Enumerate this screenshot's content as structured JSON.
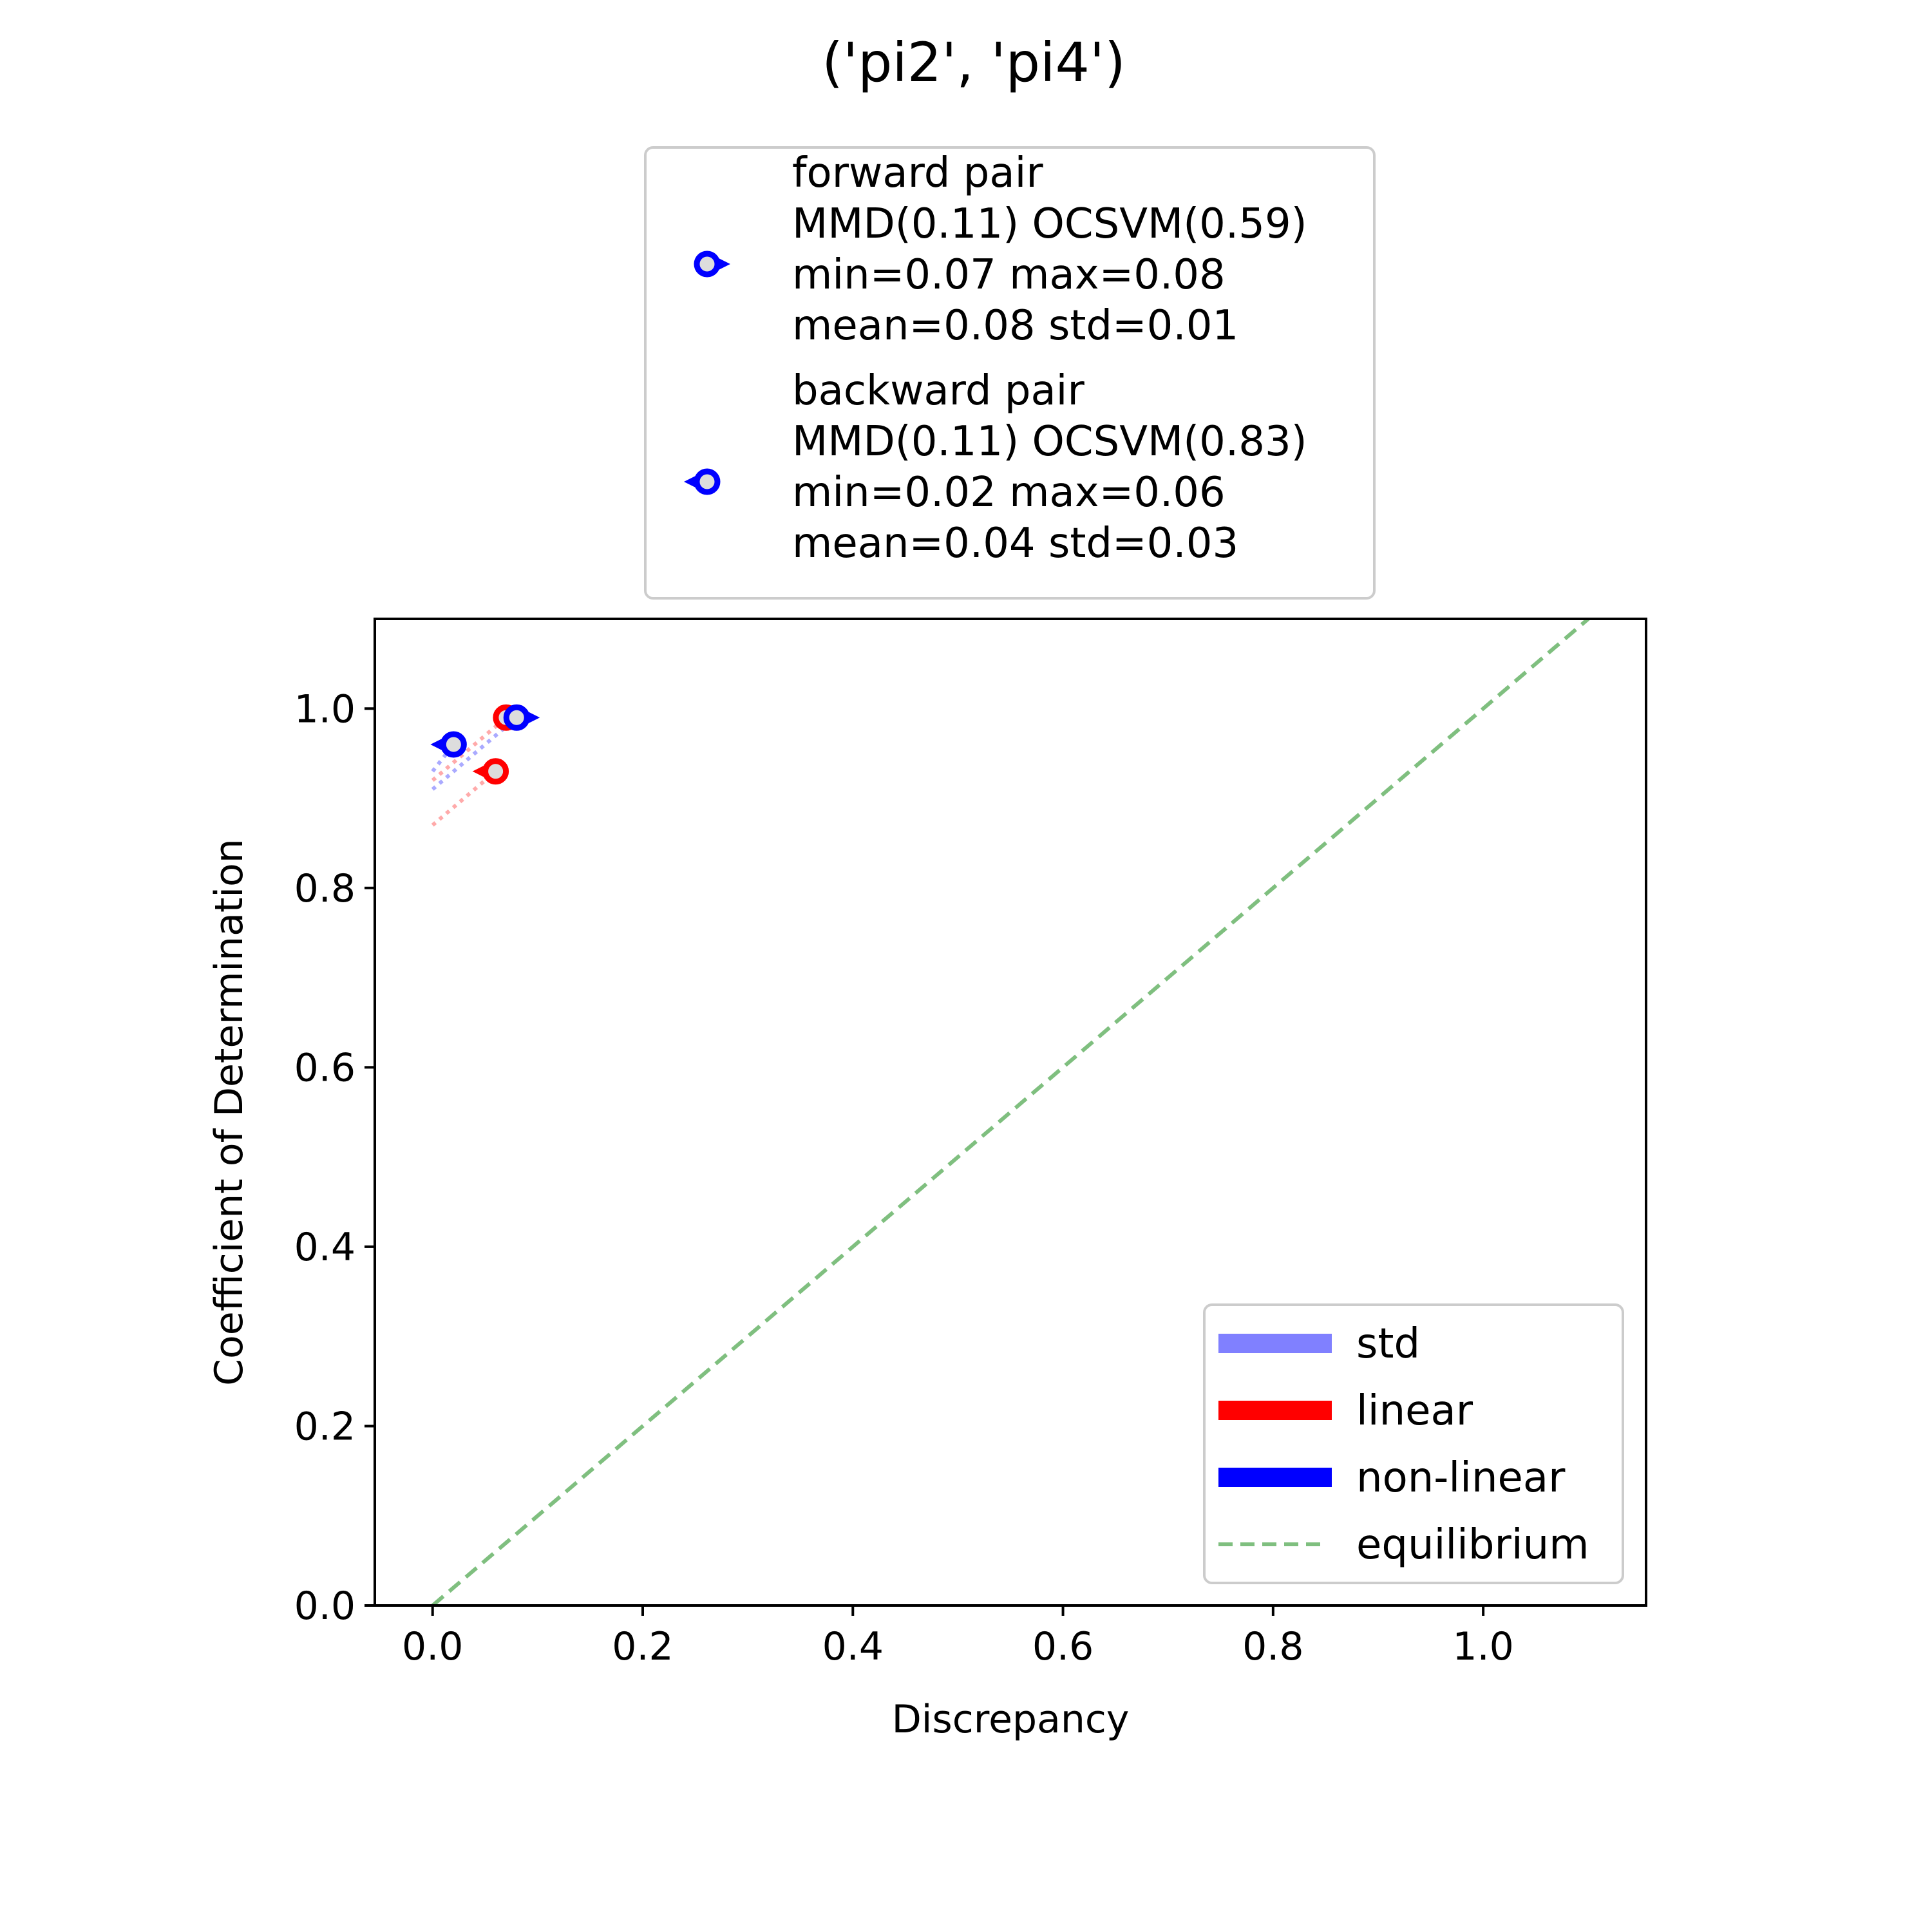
{
  "figure": {
    "title": "('pi2', 'pi4')"
  },
  "chart_data": {
    "type": "scatter",
    "title": "('pi2', 'pi4')",
    "xlabel": "Discrepancy",
    "ylabel": "Coefficient of Determination",
    "xlim": [
      -0.055,
      1.155
    ],
    "ylim": [
      0.0,
      1.1
    ],
    "xticks": [
      0.0,
      0.2,
      0.4,
      0.6,
      0.8,
      1.0
    ],
    "yticks": [
      0.0,
      0.2,
      0.4,
      0.6,
      0.8,
      1.0
    ],
    "xtick_labels": [
      "0.0",
      "0.2",
      "0.4",
      "0.6",
      "0.8",
      "1.0"
    ],
    "ytick_labels": [
      "0.0",
      "0.2",
      "0.4",
      "0.6",
      "0.8",
      "1.0"
    ],
    "grid": false,
    "equilibrium_line": {
      "x": [
        0.0,
        1.1
      ],
      "y": [
        0.0,
        1.1
      ],
      "color": "#7fbf7f",
      "style": "dashed"
    },
    "series": [
      {
        "pair": "forward",
        "marker": "circle-with-right-triangle",
        "points": [
          {
            "model": "linear",
            "x": 0.07,
            "y": 0.99,
            "color": "#ff0000",
            "std_from": [
              0.0,
              0.92
            ]
          },
          {
            "model": "non-linear",
            "x": 0.08,
            "y": 0.99,
            "color": "#0000ff",
            "std_from": [
              0.0,
              0.91
            ]
          }
        ]
      },
      {
        "pair": "backward",
        "marker": "circle-with-left-triangle",
        "points": [
          {
            "model": "linear",
            "x": 0.06,
            "y": 0.93,
            "color": "#ff0000",
            "std_from": [
              0.0,
              0.87
            ]
          },
          {
            "model": "non-linear",
            "x": 0.02,
            "y": 0.96,
            "color": "#0000ff",
            "std_from": [
              0.0,
              0.93
            ]
          }
        ]
      }
    ],
    "top_legend": {
      "placement": "above plot",
      "entries": [
        {
          "marker": "circle-with-right-triangle",
          "color": "#0000ff",
          "lines": [
            "forward pair",
            "MMD(0.11) OCSVM(0.59)",
            "min=0.07 max=0.08",
            "mean=0.08 std=0.01"
          ]
        },
        {
          "marker": "circle-with-left-triangle",
          "color": "#0000ff",
          "lines": [
            "backward pair",
            "MMD(0.11) OCSVM(0.83)",
            "min=0.02 max=0.06",
            "mean=0.04 std=0.03"
          ]
        }
      ]
    },
    "legend": {
      "placement": "lower right",
      "entries": [
        {
          "label": "std",
          "color": "#8080ff",
          "style": "solid"
        },
        {
          "label": "linear",
          "color": "#ff0000",
          "style": "solid"
        },
        {
          "label": "non-linear",
          "color": "#0000ff",
          "style": "solid"
        },
        {
          "label": "equilibrium",
          "color": "#7fbf7f",
          "style": "dashed"
        }
      ]
    }
  }
}
